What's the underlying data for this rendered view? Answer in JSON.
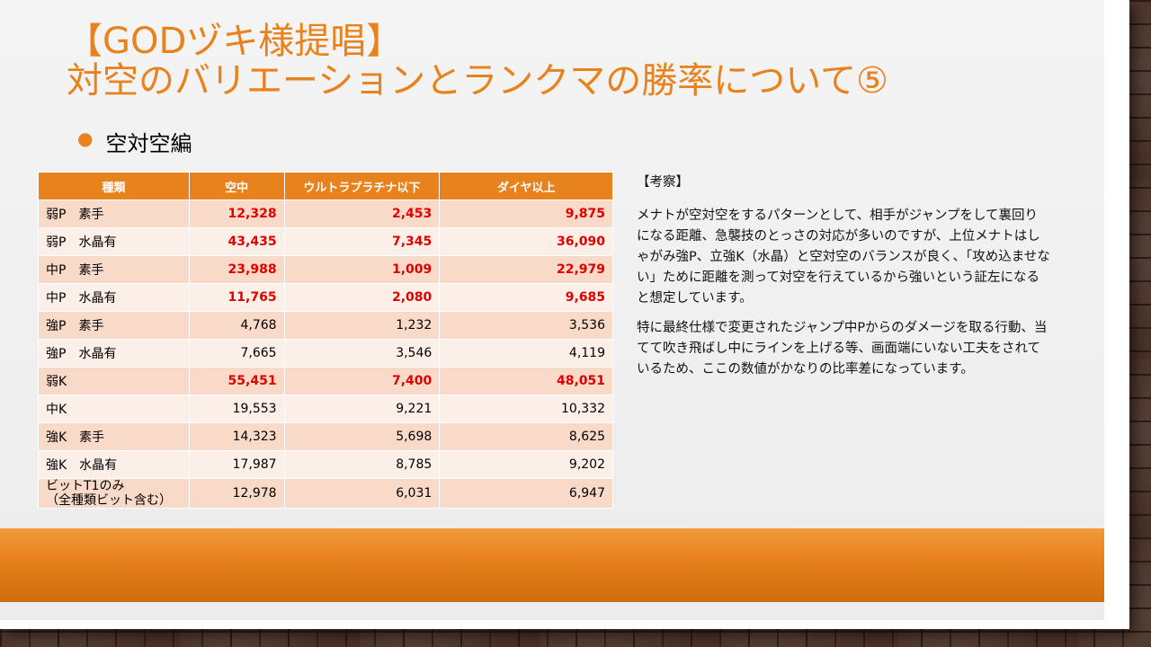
{
  "title_line1": "【GODヅキ様提唱】",
  "title_line2": "対空のバリエーションとランクマの勝率について⑤",
  "bullet": "空対空編",
  "colors": {
    "accent": "#e8821c",
    "highlight": "#e00000"
  },
  "table": {
    "headers": [
      "種類",
      "空中",
      "ウルトラプラチナ以下",
      "ダイヤ以上"
    ],
    "rows": [
      {
        "name": "弱P　素手",
        "v1": "12,328",
        "v2": "2,453",
        "v3": "9,875",
        "hl": true
      },
      {
        "name": "弱P　水晶有",
        "v1": "43,435",
        "v2": "7,345",
        "v3": "36,090",
        "hl": true
      },
      {
        "name": "中P　素手",
        "v1": "23,988",
        "v2": "1,009",
        "v3": "22,979",
        "hl": true
      },
      {
        "name": "中P　水晶有",
        "v1": "11,765",
        "v2": "2,080",
        "v3": "9,685",
        "hl": true
      },
      {
        "name": "強P　素手",
        "v1": "4,768",
        "v2": "1,232",
        "v3": "3,536",
        "hl": false
      },
      {
        "name": "強P　水晶有",
        "v1": "7,665",
        "v2": "3,546",
        "v3": "4,119",
        "hl": false
      },
      {
        "name": "弱K",
        "v1": "55,451",
        "v2": "7,400",
        "v3": "48,051",
        "hl": true
      },
      {
        "name": "中K",
        "v1": "19,553",
        "v2": "9,221",
        "v3": "10,332",
        "hl": false
      },
      {
        "name": "強K　素手",
        "v1": "14,323",
        "v2": "5,698",
        "v3": "8,625",
        "hl": false
      },
      {
        "name": "強K　水晶有",
        "v1": "17,987",
        "v2": "8,785",
        "v3": "9,202",
        "hl": false
      },
      {
        "name": "ビットT1のみ",
        "name2": "（全種類ビット含む）",
        "v1": "12,978",
        "v2": "6,031",
        "v3": "6,947",
        "hl": false
      }
    ]
  },
  "notes": {
    "head": "【考察】",
    "p1": "メナトが空対空をするパターンとして、相手がジャンプをして裏回りになる距離、急襲技のとっさの対応が多いのですが、上位メナトはしゃがみ強P、立強K（水晶）と空対空のバランスが良く、「攻め込ませない」ために距離を測って対空を行えているから強いという証左になると想定しています。",
    "p2": "特に最終仕様で変更されたジャンプ中Pからのダメージを取る行動、当てて吹き飛ばし中にラインを上げる等、画面端にいない工夫をされているため、ここの数値がかなりの比率差になっています。"
  }
}
